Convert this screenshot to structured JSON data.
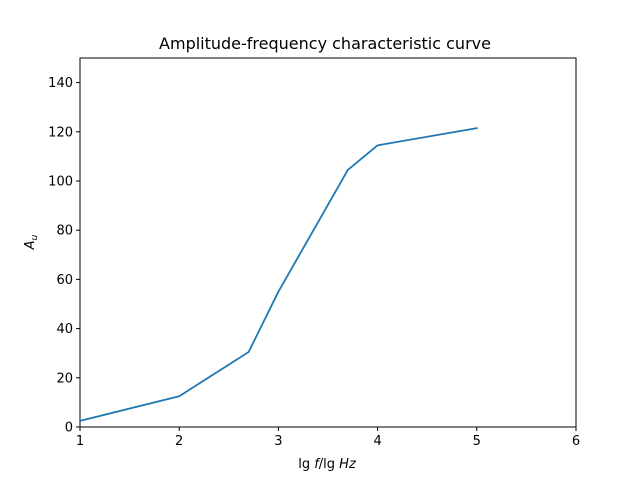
{
  "chart_data": {
    "type": "line",
    "title": "Amplitude-frequency characteristic curve",
    "xlabel": "lg f/lg Hz",
    "ylabel": "A_u",
    "xlim": [
      1,
      6
    ],
    "ylim": [
      0,
      150
    ],
    "xticks": [
      "1",
      "2",
      "3",
      "4",
      "5",
      "6"
    ],
    "yticks": [
      "0",
      "20",
      "40",
      "60",
      "80",
      "100",
      "120",
      "140"
    ],
    "grid": false,
    "series": [
      {
        "x": [
          1,
          2,
          2.7,
          3,
          3.7,
          4,
          5
        ],
        "y": [
          2.5,
          12.5,
          30.5,
          55,
          104.5,
          114.5,
          121.5
        ],
        "color": "#1f77b4"
      }
    ]
  }
}
